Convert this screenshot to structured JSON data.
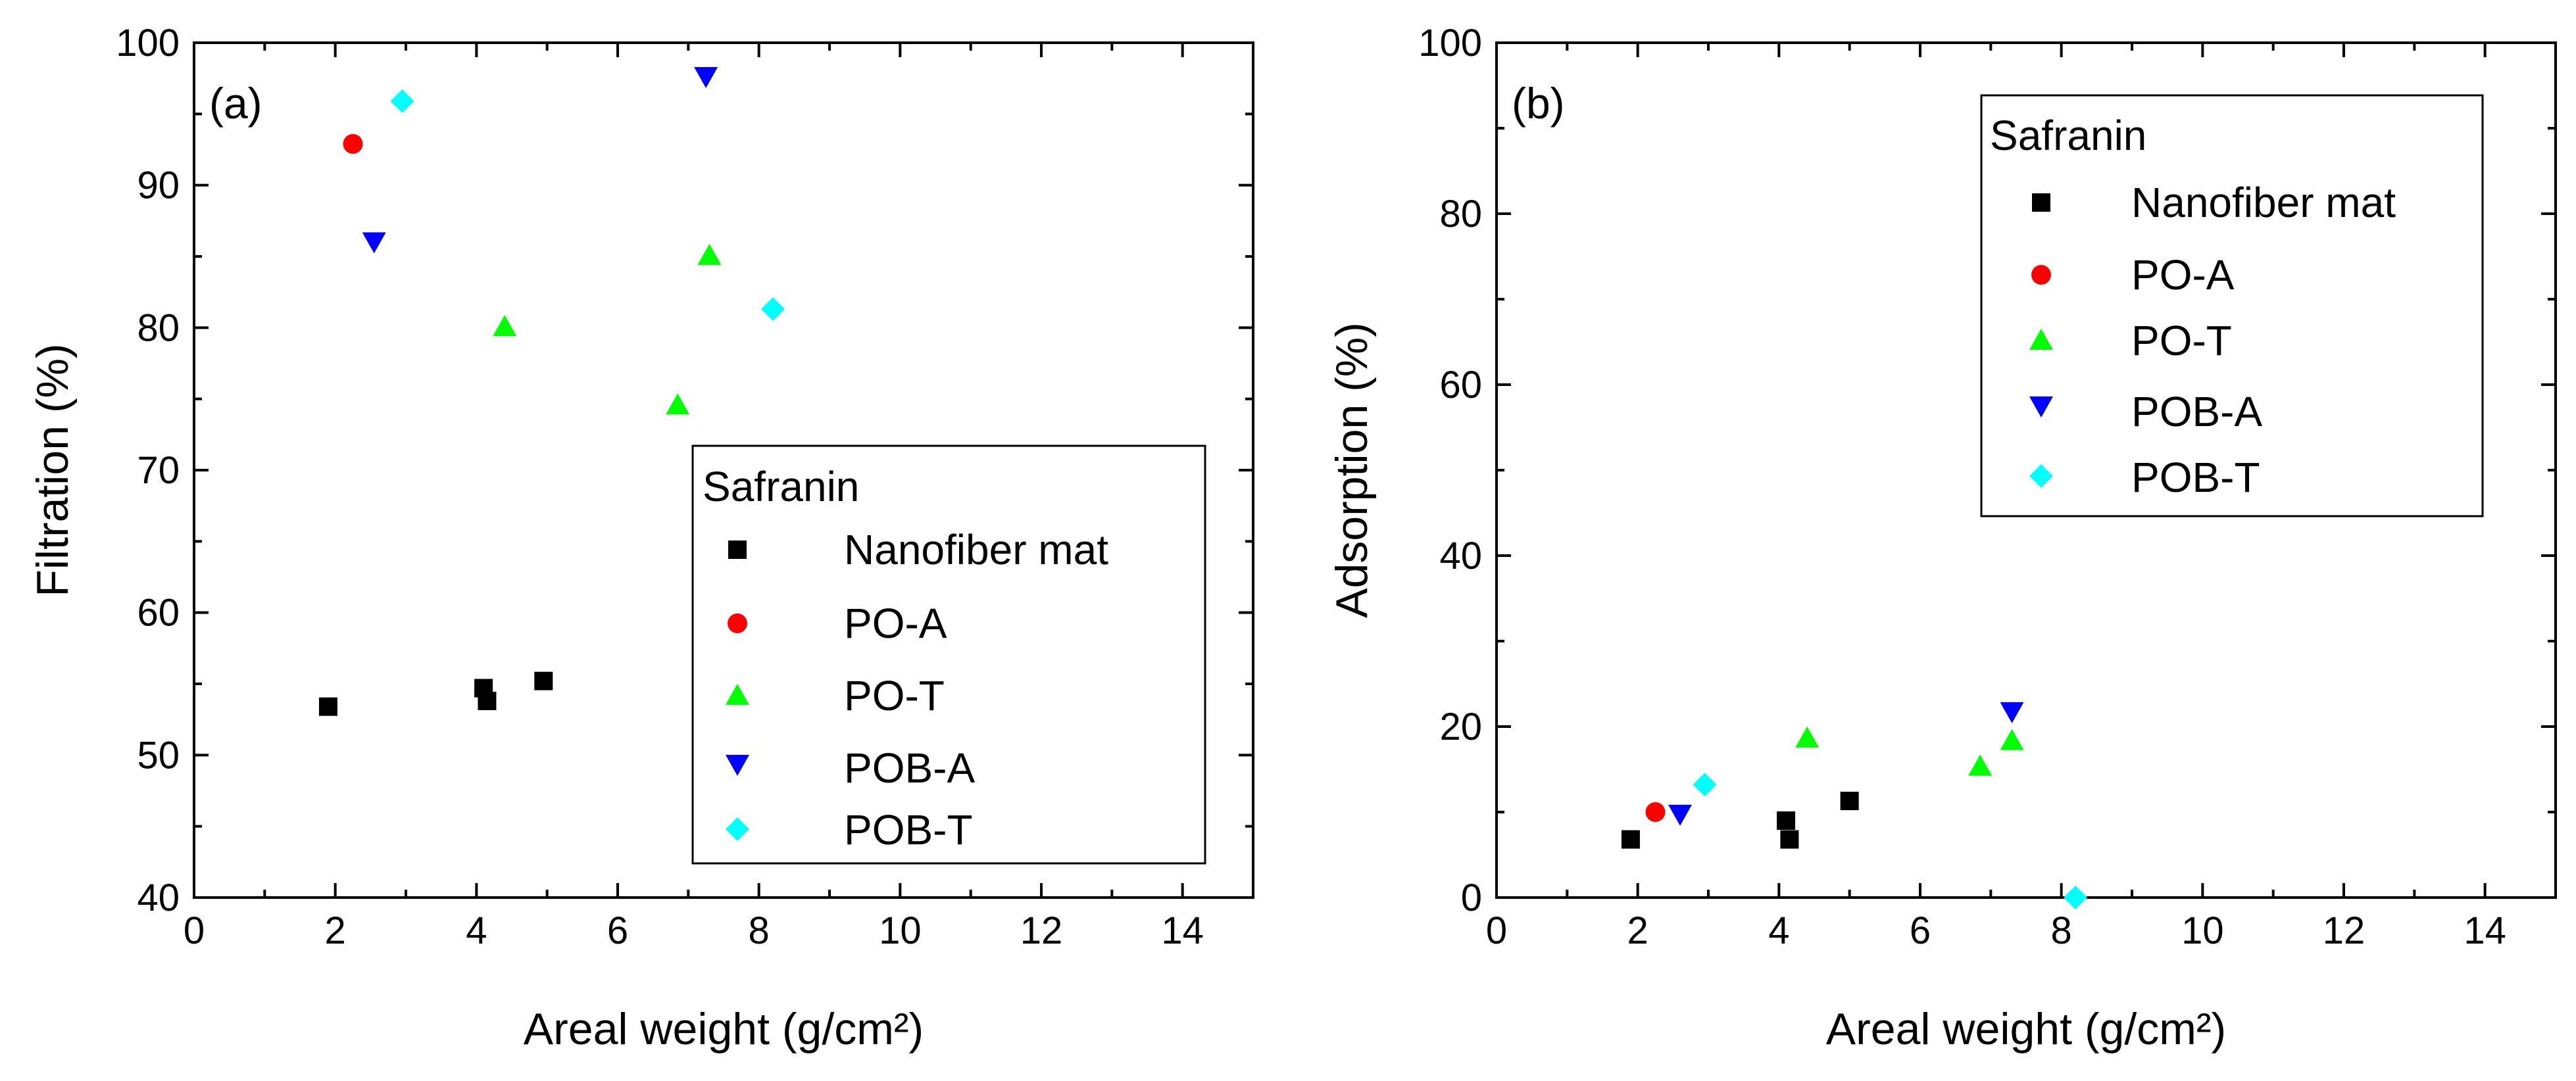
{
  "chart_data": [
    {
      "type": "scatter",
      "panel_label": "(a)",
      "xlabel": "Areal weight (g/cm²)",
      "ylabel": "Filtration (%)",
      "xlim": [
        0,
        15
      ],
      "ylim": [
        40,
        100
      ],
      "xticks": [
        0,
        2,
        4,
        6,
        8,
        10,
        12,
        14
      ],
      "yticks": [
        40,
        50,
        60,
        70,
        80,
        90,
        100
      ],
      "xtick_labels": [
        "0",
        "2",
        "4",
        "6",
        "8",
        "10",
        "12",
        "14"
      ],
      "ytick_labels": [
        "40",
        "50",
        "60",
        "70",
        "80",
        "90",
        "100"
      ],
      "grid": false,
      "legend": {
        "title": "Safranin",
        "position": "bottom-right",
        "entries": [
          "Nanofiber mat",
          "PO-A",
          "PO-T",
          "POB-A",
          "POB-T"
        ]
      },
      "series": [
        {
          "name": "Nanofiber mat",
          "marker": "square",
          "color": "#000000",
          "points": [
            {
              "x": 1.9,
              "y": 53.4
            },
            {
              "x": 4.1,
              "y": 54.7
            },
            {
              "x": 4.15,
              "y": 53.8
            },
            {
              "x": 4.95,
              "y": 55.2
            }
          ]
        },
        {
          "name": "PO-A",
          "marker": "circle",
          "color": "#ff0000",
          "points": [
            {
              "x": 2.25,
              "y": 92.9
            }
          ]
        },
        {
          "name": "PO-T",
          "marker": "triangle-up",
          "color": "#00ff00",
          "points": [
            {
              "x": 4.4,
              "y": 80.1
            },
            {
              "x": 6.85,
              "y": 74.6
            },
            {
              "x": 7.3,
              "y": 85.1
            }
          ]
        },
        {
          "name": "POB-A",
          "marker": "triangle-down",
          "color": "#0000ff",
          "points": [
            {
              "x": 2.55,
              "y": 86.0
            },
            {
              "x": 7.25,
              "y": 97.6
            }
          ]
        },
        {
          "name": "POB-T",
          "marker": "diamond",
          "color": "#00ffff",
          "points": [
            {
              "x": 2.95,
              "y": 95.9
            },
            {
              "x": 8.2,
              "y": 81.3
            }
          ]
        }
      ]
    },
    {
      "type": "scatter",
      "panel_label": "(b)",
      "xlabel": "Areal weight (g/cm²)",
      "ylabel": "Adsorption (%)",
      "xlim": [
        0,
        15
      ],
      "ylim": [
        0,
        100
      ],
      "xticks": [
        0,
        2,
        4,
        6,
        8,
        10,
        12,
        14
      ],
      "yticks": [
        0,
        20,
        40,
        60,
        80,
        100
      ],
      "xtick_labels": [
        "0",
        "2",
        "4",
        "6",
        "8",
        "10",
        "12",
        "14"
      ],
      "ytick_labels": [
        "0",
        "20",
        "40",
        "60",
        "80",
        "100"
      ],
      "grid": false,
      "legend": {
        "title": "Safranin",
        "position": "top-right",
        "entries": [
          "Nanofiber mat",
          "PO-A",
          "PO-T",
          "POB-A",
          "POB-T"
        ]
      },
      "series": [
        {
          "name": "Nanofiber mat",
          "marker": "square",
          "color": "#000000",
          "points": [
            {
              "x": 1.9,
              "y": 6.8
            },
            {
              "x": 4.1,
              "y": 9.0
            },
            {
              "x": 4.15,
              "y": 6.8
            },
            {
              "x": 5.0,
              "y": 11.3
            }
          ]
        },
        {
          "name": "PO-A",
          "marker": "circle",
          "color": "#ff0000",
          "points": [
            {
              "x": 2.25,
              "y": 10.0
            }
          ]
        },
        {
          "name": "PO-T",
          "marker": "triangle-up",
          "color": "#00ff00",
          "points": [
            {
              "x": 4.4,
              "y": 18.7
            },
            {
              "x": 6.85,
              "y": 15.4
            },
            {
              "x": 7.3,
              "y": 18.4
            }
          ]
        },
        {
          "name": "POB-A",
          "marker": "triangle-down",
          "color": "#0000ff",
          "points": [
            {
              "x": 2.6,
              "y": 9.7
            },
            {
              "x": 7.3,
              "y": 21.7
            }
          ]
        },
        {
          "name": "POB-T",
          "marker": "diamond",
          "color": "#00ffff",
          "points": [
            {
              "x": 2.95,
              "y": 13.2
            },
            {
              "x": 8.2,
              "y": 0.0
            }
          ]
        }
      ]
    }
  ]
}
